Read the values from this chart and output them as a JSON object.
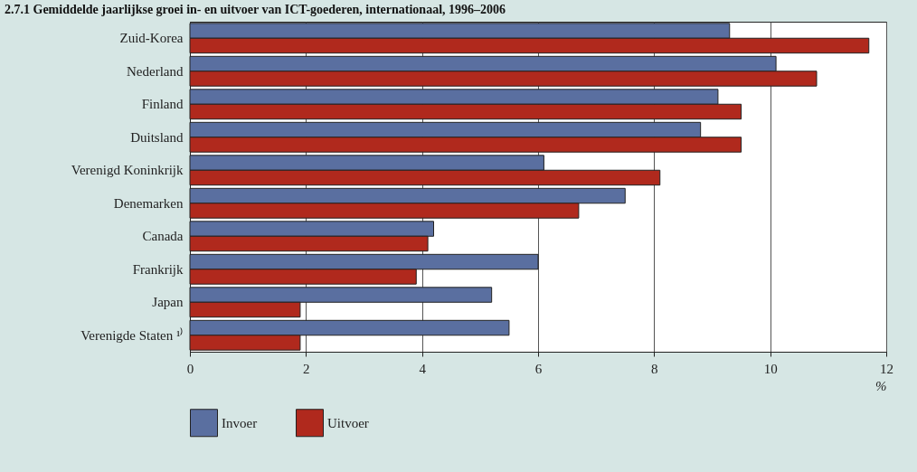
{
  "chart_data": {
    "type": "bar",
    "orientation": "horizontal",
    "title": "2.7.1 Gemiddelde jaarlijkse groei in- en uitvoer van ICT-goederen, internationaal, 1996–2006",
    "xlabel": "%",
    "categories": [
      "Zuid-Korea",
      "Nederland",
      "Finland",
      "Duitsland",
      "Verenigd Koninkrijk",
      "Denemarken",
      "Canada",
      "Frankrijk",
      "Japan",
      "Verenigde Staten ¹⁾"
    ],
    "series": [
      {
        "name": "Invoer",
        "color": "#5a6fa0",
        "values": [
          9.3,
          10.1,
          9.1,
          8.8,
          6.1,
          7.5,
          4.2,
          6.0,
          5.2,
          5.5
        ]
      },
      {
        "name": "Uitvoer",
        "color": "#b0291d",
        "values": [
          11.7,
          10.8,
          9.5,
          9.5,
          8.1,
          6.7,
          4.1,
          3.9,
          1.9,
          1.9
        ]
      }
    ],
    "xlim": [
      0,
      12
    ],
    "xticks": [
      0,
      2,
      4,
      6,
      8,
      10,
      12
    ],
    "grid": "x",
    "legend": "bottom left"
  }
}
